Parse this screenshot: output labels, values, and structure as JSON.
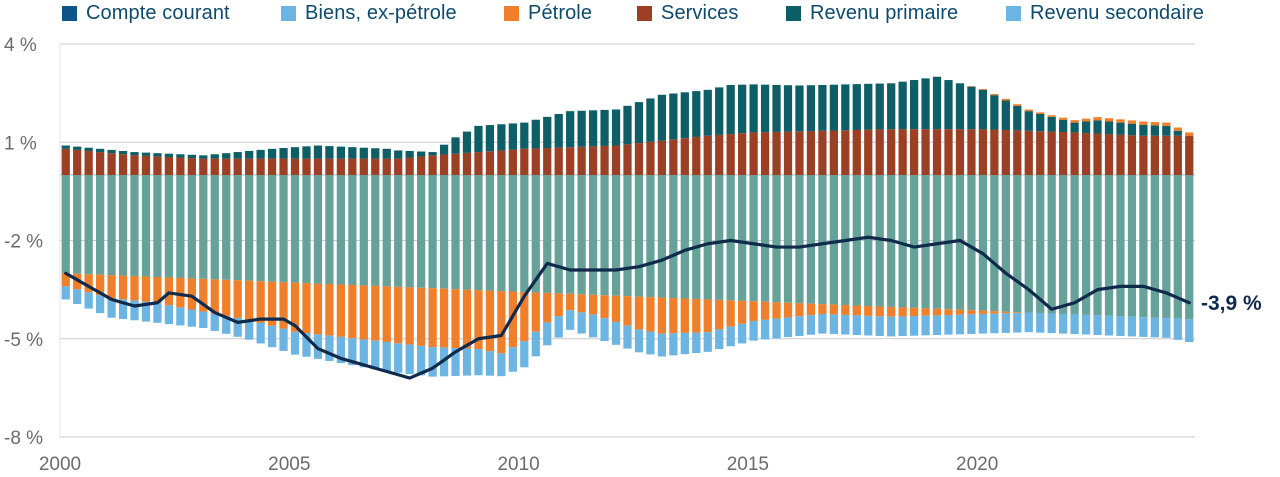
{
  "legend": {
    "items": [
      {
        "label": "Compte courant",
        "color": "#0f5488"
      },
      {
        "label": "Biens, ex-pétrole",
        "color": "#6cb4e2"
      },
      {
        "label": "Pétrole",
        "color": "#ef7f2b"
      },
      {
        "label": "Services",
        "color": "#9b4024"
      },
      {
        "label": "Revenu primaire",
        "color": "#0d5e66"
      },
      {
        "label": "Revenu secondaire",
        "color": "#6cb4e2"
      }
    ]
  },
  "colors": {
    "goods": "#6cb4e2",
    "oil": "#ef7f2b",
    "services": "#9b4024",
    "primary": "#0d5e66",
    "secondary": "#67a29a",
    "current_account": "#102a4c",
    "grid": "#c9c9c9",
    "axis_text": "#6b6b6b",
    "end_label": "#102a4c"
  },
  "end_label": "-3,9 %",
  "chart_data": {
    "type": "bar",
    "stacked": true,
    "frequency": "quarterly",
    "start": "2000-Q1",
    "quarters": 99,
    "x_ticks": [
      "2000",
      "2005",
      "2010",
      "2015",
      "2020"
    ],
    "y_ticks": [
      "4 %",
      "1 %",
      "-2 %",
      "-5 %",
      "-8 %"
    ],
    "y_tick_values": [
      4,
      1,
      -2,
      -5,
      -8
    ],
    "ylim": [
      -8,
      4
    ],
    "grid": true,
    "legend_position": "top",
    "series": [
      {
        "name": "Services",
        "key": "services",
        "anchors": [
          [
            0,
            0.8
          ],
          [
            6,
            0.6
          ],
          [
            12,
            0.5
          ],
          [
            20,
            0.5
          ],
          [
            29,
            0.5
          ],
          [
            32,
            0.6
          ],
          [
            40,
            0.8
          ],
          [
            48,
            0.9
          ],
          [
            56,
            1.2
          ],
          [
            60,
            1.3
          ],
          [
            72,
            1.4
          ],
          [
            80,
            1.4
          ],
          [
            88,
            1.3
          ],
          [
            94,
            1.2
          ],
          [
            98,
            1.2
          ]
        ]
      },
      {
        "name": "Revenu primaire",
        "key": "primary",
        "anchors": [
          [
            0,
            0.1
          ],
          [
            8,
            0.1
          ],
          [
            12,
            0.1
          ],
          [
            18,
            0.3
          ],
          [
            22,
            0.4
          ],
          [
            28,
            0.3
          ],
          [
            32,
            0.1
          ],
          [
            34,
            0.5
          ],
          [
            36,
            0.8
          ],
          [
            40,
            0.8
          ],
          [
            44,
            1.1
          ],
          [
            48,
            1.1
          ],
          [
            52,
            1.4
          ],
          [
            56,
            1.4
          ],
          [
            58,
            1.5
          ],
          [
            64,
            1.4
          ],
          [
            68,
            1.4
          ],
          [
            72,
            1.4
          ],
          [
            76,
            1.6
          ],
          [
            80,
            1.2
          ],
          [
            84,
            0.6
          ],
          [
            88,
            0.3
          ],
          [
            90,
            0.4
          ],
          [
            96,
            0.3
          ],
          [
            98,
            0.0
          ]
        ]
      },
      {
        "name": "Pétrole",
        "key": "oil",
        "anchors": [
          [
            0,
            0
          ],
          [
            78,
            0
          ],
          [
            82,
            0.05
          ],
          [
            86,
            0.05
          ],
          [
            90,
            0.1
          ],
          [
            96,
            0.1
          ],
          [
            98,
            0.1
          ]
        ]
      },
      {
        "name": "Revenu secondaire",
        "key": "secondary",
        "anchors": [
          [
            0,
            -3
          ],
          [
            98,
            -4.4
          ]
        ]
      },
      {
        "name": "Pétrole",
        "key": "oil",
        "anchors": [
          [
            0,
            -0.4
          ],
          [
            4,
            -0.7
          ],
          [
            8,
            -0.8
          ],
          [
            12,
            -1.0
          ],
          [
            16,
            -1.2
          ],
          [
            20,
            -1.5
          ],
          [
            24,
            -1.6
          ],
          [
            28,
            -1.7
          ],
          [
            32,
            -1.8
          ],
          [
            36,
            -1.8
          ],
          [
            38,
            -1.9
          ],
          [
            40,
            -1.5
          ],
          [
            42,
            -0.9
          ],
          [
            44,
            -0.5
          ],
          [
            46,
            -0.6
          ],
          [
            48,
            -0.8
          ],
          [
            50,
            -1.0
          ],
          [
            52,
            -1.1
          ],
          [
            56,
            -1.0
          ],
          [
            60,
            -0.6
          ],
          [
            64,
            -0.4
          ],
          [
            66,
            -0.3
          ],
          [
            70,
            -0.3
          ],
          [
            72,
            -0.3
          ],
          [
            76,
            -0.2
          ],
          [
            80,
            -0.1
          ],
          [
            84,
            0
          ],
          [
            86,
            0
          ],
          [
            98,
            0
          ]
        ]
      },
      {
        "name": "Biens, ex-pétrole",
        "key": "goods",
        "anchors": [
          [
            0,
            -0.4
          ],
          [
            4,
            -0.6
          ],
          [
            8,
            -0.6
          ],
          [
            12,
            -0.5
          ],
          [
            16,
            -0.6
          ],
          [
            20,
            -0.7
          ],
          [
            24,
            -0.8
          ],
          [
            28,
            -0.9
          ],
          [
            32,
            -0.9
          ],
          [
            36,
            -0.8
          ],
          [
            38,
            -0.7
          ],
          [
            40,
            -0.8
          ],
          [
            42,
            -0.7
          ],
          [
            44,
            -0.6
          ],
          [
            46,
            -0.7
          ],
          [
            48,
            -0.7
          ],
          [
            52,
            -0.7
          ],
          [
            56,
            -0.6
          ],
          [
            60,
            -0.6
          ],
          [
            64,
            -0.6
          ],
          [
            68,
            -0.6
          ],
          [
            72,
            -0.6
          ],
          [
            76,
            -0.6
          ],
          [
            80,
            -0.6
          ],
          [
            84,
            -0.6
          ],
          [
            88,
            -0.6
          ],
          [
            92,
            -0.6
          ],
          [
            96,
            -0.6
          ],
          [
            98,
            -0.7
          ]
        ]
      },
      {
        "name": "Compte courant",
        "key": "current_account",
        "line": true,
        "anchors": [
          [
            0,
            -3.0
          ],
          [
            2,
            -3.4
          ],
          [
            4,
            -3.8
          ],
          [
            6,
            -4.0
          ],
          [
            8,
            -3.9
          ],
          [
            9,
            -3.6
          ],
          [
            11,
            -3.7
          ],
          [
            13,
            -4.2
          ],
          [
            15,
            -4.5
          ],
          [
            17,
            -4.4
          ],
          [
            19,
            -4.4
          ],
          [
            20,
            -4.6
          ],
          [
            22,
            -5.3
          ],
          [
            24,
            -5.6
          ],
          [
            26,
            -5.8
          ],
          [
            28,
            -6.0
          ],
          [
            30,
            -6.2
          ],
          [
            32,
            -5.9
          ],
          [
            34,
            -5.4
          ],
          [
            36,
            -5.0
          ],
          [
            38,
            -4.9
          ],
          [
            40,
            -3.7
          ],
          [
            42,
            -2.7
          ],
          [
            44,
            -2.9
          ],
          [
            46,
            -2.9
          ],
          [
            48,
            -2.9
          ],
          [
            50,
            -2.8
          ],
          [
            52,
            -2.6
          ],
          [
            54,
            -2.3
          ],
          [
            56,
            -2.1
          ],
          [
            58,
            -2.0
          ],
          [
            60,
            -2.1
          ],
          [
            62,
            -2.2
          ],
          [
            64,
            -2.2
          ],
          [
            66,
            -2.1
          ],
          [
            68,
            -2.0
          ],
          [
            70,
            -1.9
          ],
          [
            72,
            -2.0
          ],
          [
            74,
            -2.2
          ],
          [
            76,
            -2.1
          ],
          [
            78,
            -2.0
          ],
          [
            80,
            -2.4
          ],
          [
            82,
            -3.0
          ],
          [
            84,
            -3.5
          ],
          [
            86,
            -4.1
          ],
          [
            88,
            -3.9
          ],
          [
            90,
            -3.5
          ],
          [
            92,
            -3.4
          ],
          [
            94,
            -3.4
          ],
          [
            96,
            -3.6
          ],
          [
            98,
            -3.9
          ]
        ]
      }
    ]
  }
}
